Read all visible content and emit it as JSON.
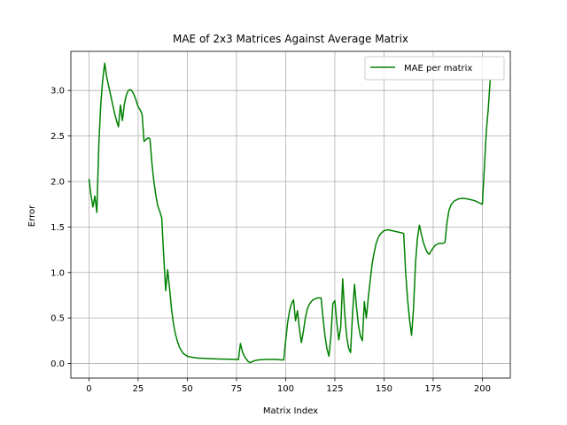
{
  "chart_data": {
    "type": "line",
    "title": "MAE of 2x3 Matrices Against Average Matrix",
    "xlabel": "Matrix Index",
    "ylabel": "Error",
    "xlim": [
      -9.2,
      214.2
    ],
    "ylim": [
      -0.16,
      3.43
    ],
    "xticks": [
      0,
      25,
      50,
      75,
      100,
      125,
      150,
      175,
      200
    ],
    "yticks": [
      0.0,
      0.5,
      1.0,
      1.5,
      2.0,
      2.5,
      3.0
    ],
    "ytick_labels": [
      "0.0",
      "0.5",
      "1.0",
      "1.5",
      "2.0",
      "2.5",
      "3.0"
    ],
    "grid": true,
    "legend_position": "top-right",
    "series": [
      {
        "name": "MAE per matrix",
        "color": "#008000",
        "x": [
          0,
          1,
          2,
          3,
          4,
          5,
          6,
          7,
          8,
          9,
          10,
          11,
          12,
          13,
          14,
          15,
          16,
          17,
          18,
          19,
          20,
          21,
          22,
          23,
          24,
          25,
          26,
          27,
          28,
          29,
          30,
          31,
          32,
          33,
          34,
          35,
          36,
          37,
          38,
          39,
          40,
          41,
          42,
          43,
          44,
          45,
          46,
          47,
          48,
          50,
          52,
          55,
          60,
          65,
          70,
          74,
          76,
          77,
          78,
          79,
          80,
          81,
          82,
          84,
          86,
          90,
          95,
          98,
          99,
          100,
          101,
          102,
          103,
          104,
          105,
          106,
          107,
          108,
          109,
          110,
          111,
          112,
          113,
          114,
          115,
          116,
          117,
          118,
          119,
          120,
          121,
          122,
          123,
          124,
          125,
          126,
          127,
          128,
          129,
          130,
          131,
          132,
          133,
          134,
          135,
          136,
          137,
          138,
          139,
          140,
          141,
          142,
          143,
          144,
          145,
          146,
          147,
          148,
          149,
          150,
          152,
          154,
          156,
          158,
          160,
          161,
          162,
          163,
          164,
          165,
          166,
          167,
          168,
          169,
          170,
          171,
          172,
          173,
          174,
          175,
          176,
          178,
          180,
          181,
          182,
          183,
          184,
          185,
          186,
          187,
          188,
          190,
          192,
          194,
          196,
          198,
          200,
          202,
          203,
          204
        ],
        "y": [
          2.03,
          1.85,
          1.72,
          1.84,
          1.66,
          2.4,
          2.85,
          3.12,
          3.3,
          3.15,
          3.05,
          2.95,
          2.85,
          2.75,
          2.67,
          2.6,
          2.84,
          2.67,
          2.85,
          2.95,
          3.0,
          3.01,
          2.99,
          2.95,
          2.89,
          2.82,
          2.79,
          2.74,
          2.44,
          2.46,
          2.48,
          2.47,
          2.2,
          2.0,
          1.85,
          1.73,
          1.67,
          1.6,
          1.18,
          0.8,
          1.03,
          0.82,
          0.59,
          0.43,
          0.32,
          0.24,
          0.18,
          0.14,
          0.11,
          0.08,
          0.07,
          0.06,
          0.055,
          0.05,
          0.048,
          0.045,
          0.044,
          0.22,
          0.13,
          0.08,
          0.05,
          0.02,
          0.01,
          0.03,
          0.04,
          0.045,
          0.045,
          0.04,
          0.04,
          0.25,
          0.45,
          0.58,
          0.66,
          0.7,
          0.47,
          0.58,
          0.38,
          0.23,
          0.35,
          0.5,
          0.6,
          0.65,
          0.68,
          0.7,
          0.71,
          0.72,
          0.72,
          0.72,
          0.5,
          0.3,
          0.16,
          0.08,
          0.3,
          0.66,
          0.69,
          0.45,
          0.26,
          0.4,
          0.93,
          0.55,
          0.3,
          0.17,
          0.12,
          0.55,
          0.87,
          0.62,
          0.42,
          0.3,
          0.25,
          0.68,
          0.5,
          0.72,
          0.92,
          1.1,
          1.22,
          1.32,
          1.38,
          1.42,
          1.44,
          1.46,
          1.47,
          1.46,
          1.45,
          1.44,
          1.43,
          1.0,
          0.7,
          0.48,
          0.31,
          0.6,
          1.1,
          1.38,
          1.52,
          1.42,
          1.33,
          1.27,
          1.22,
          1.2,
          1.24,
          1.27,
          1.3,
          1.32,
          1.32,
          1.33,
          1.55,
          1.68,
          1.74,
          1.77,
          1.79,
          1.8,
          1.81,
          1.815,
          1.81,
          1.8,
          1.79,
          1.77,
          1.75,
          2.55,
          2.8,
          3.12
        ]
      }
    ]
  }
}
